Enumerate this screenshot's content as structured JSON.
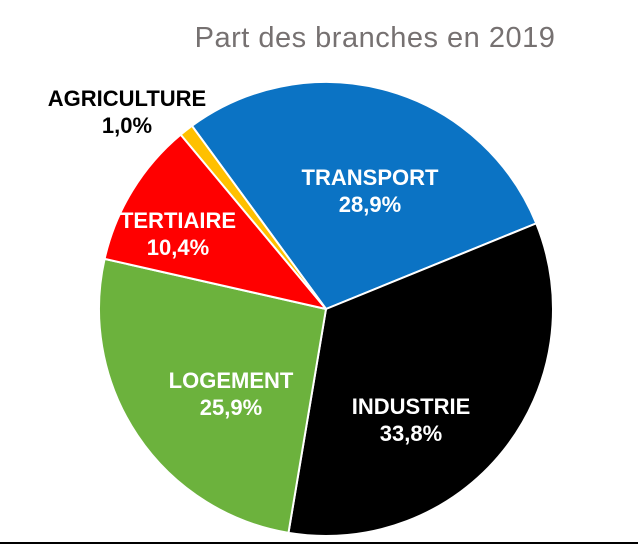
{
  "chart_data": {
    "type": "pie",
    "title": "Part des branches en 2019",
    "title_color": "#767171",
    "background_color": "#ffffff",
    "legend": "none",
    "labels_on_slices": true,
    "separator_color": "#ffffff",
    "bottom_rule_color": "#000000",
    "start_angle_deg": -36.2,
    "direction": "clockwise",
    "units": "%",
    "decimal_separator": ",",
    "slices": [
      {
        "label": "TRANSPORT",
        "value": 28.9,
        "display": "28,9%",
        "color": "#0b73c4",
        "label_color": "#ffffff"
      },
      {
        "label": "INDUSTRIE",
        "value": 33.8,
        "display": "33,8%",
        "color": "#000000",
        "label_color": "#ffffff"
      },
      {
        "label": "LOGEMENT",
        "value": 25.9,
        "display": "25,9%",
        "color": "#6cb23d",
        "label_color": "#ffffff"
      },
      {
        "label": "TERTIAIRE",
        "value": 10.4,
        "display": "10,4%",
        "color": "#ff0000",
        "label_color": "#ffffff"
      },
      {
        "label": "AGRICULTURE",
        "value": 1.0,
        "display": "1,0%",
        "color": "#ffc000",
        "label_color": "#000000"
      }
    ]
  }
}
